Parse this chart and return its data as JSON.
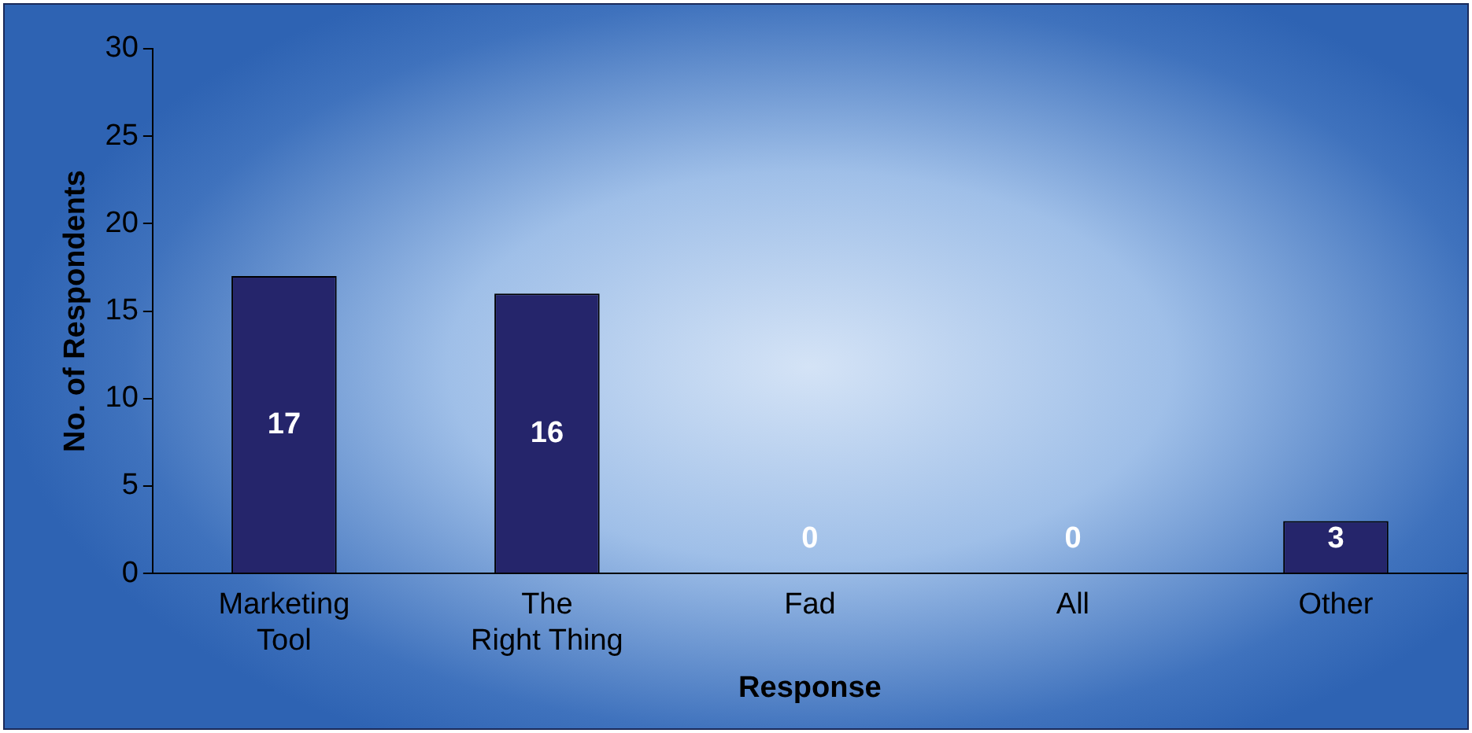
{
  "chart_data": {
    "type": "bar",
    "xlabel": "Response",
    "ylabel": "No. of Respondents",
    "categories": [
      "Marketing Tool",
      "The Right Thing",
      "Fad",
      "All",
      "Other"
    ],
    "values": [
      17,
      16,
      0,
      0,
      3
    ],
    "color": "#25256b",
    "ylim": [
      0,
      30
    ],
    "yticks": [
      0,
      5,
      10,
      15,
      20,
      25,
      30
    ],
    "grid": false,
    "legend": false,
    "data_labels": true
  }
}
